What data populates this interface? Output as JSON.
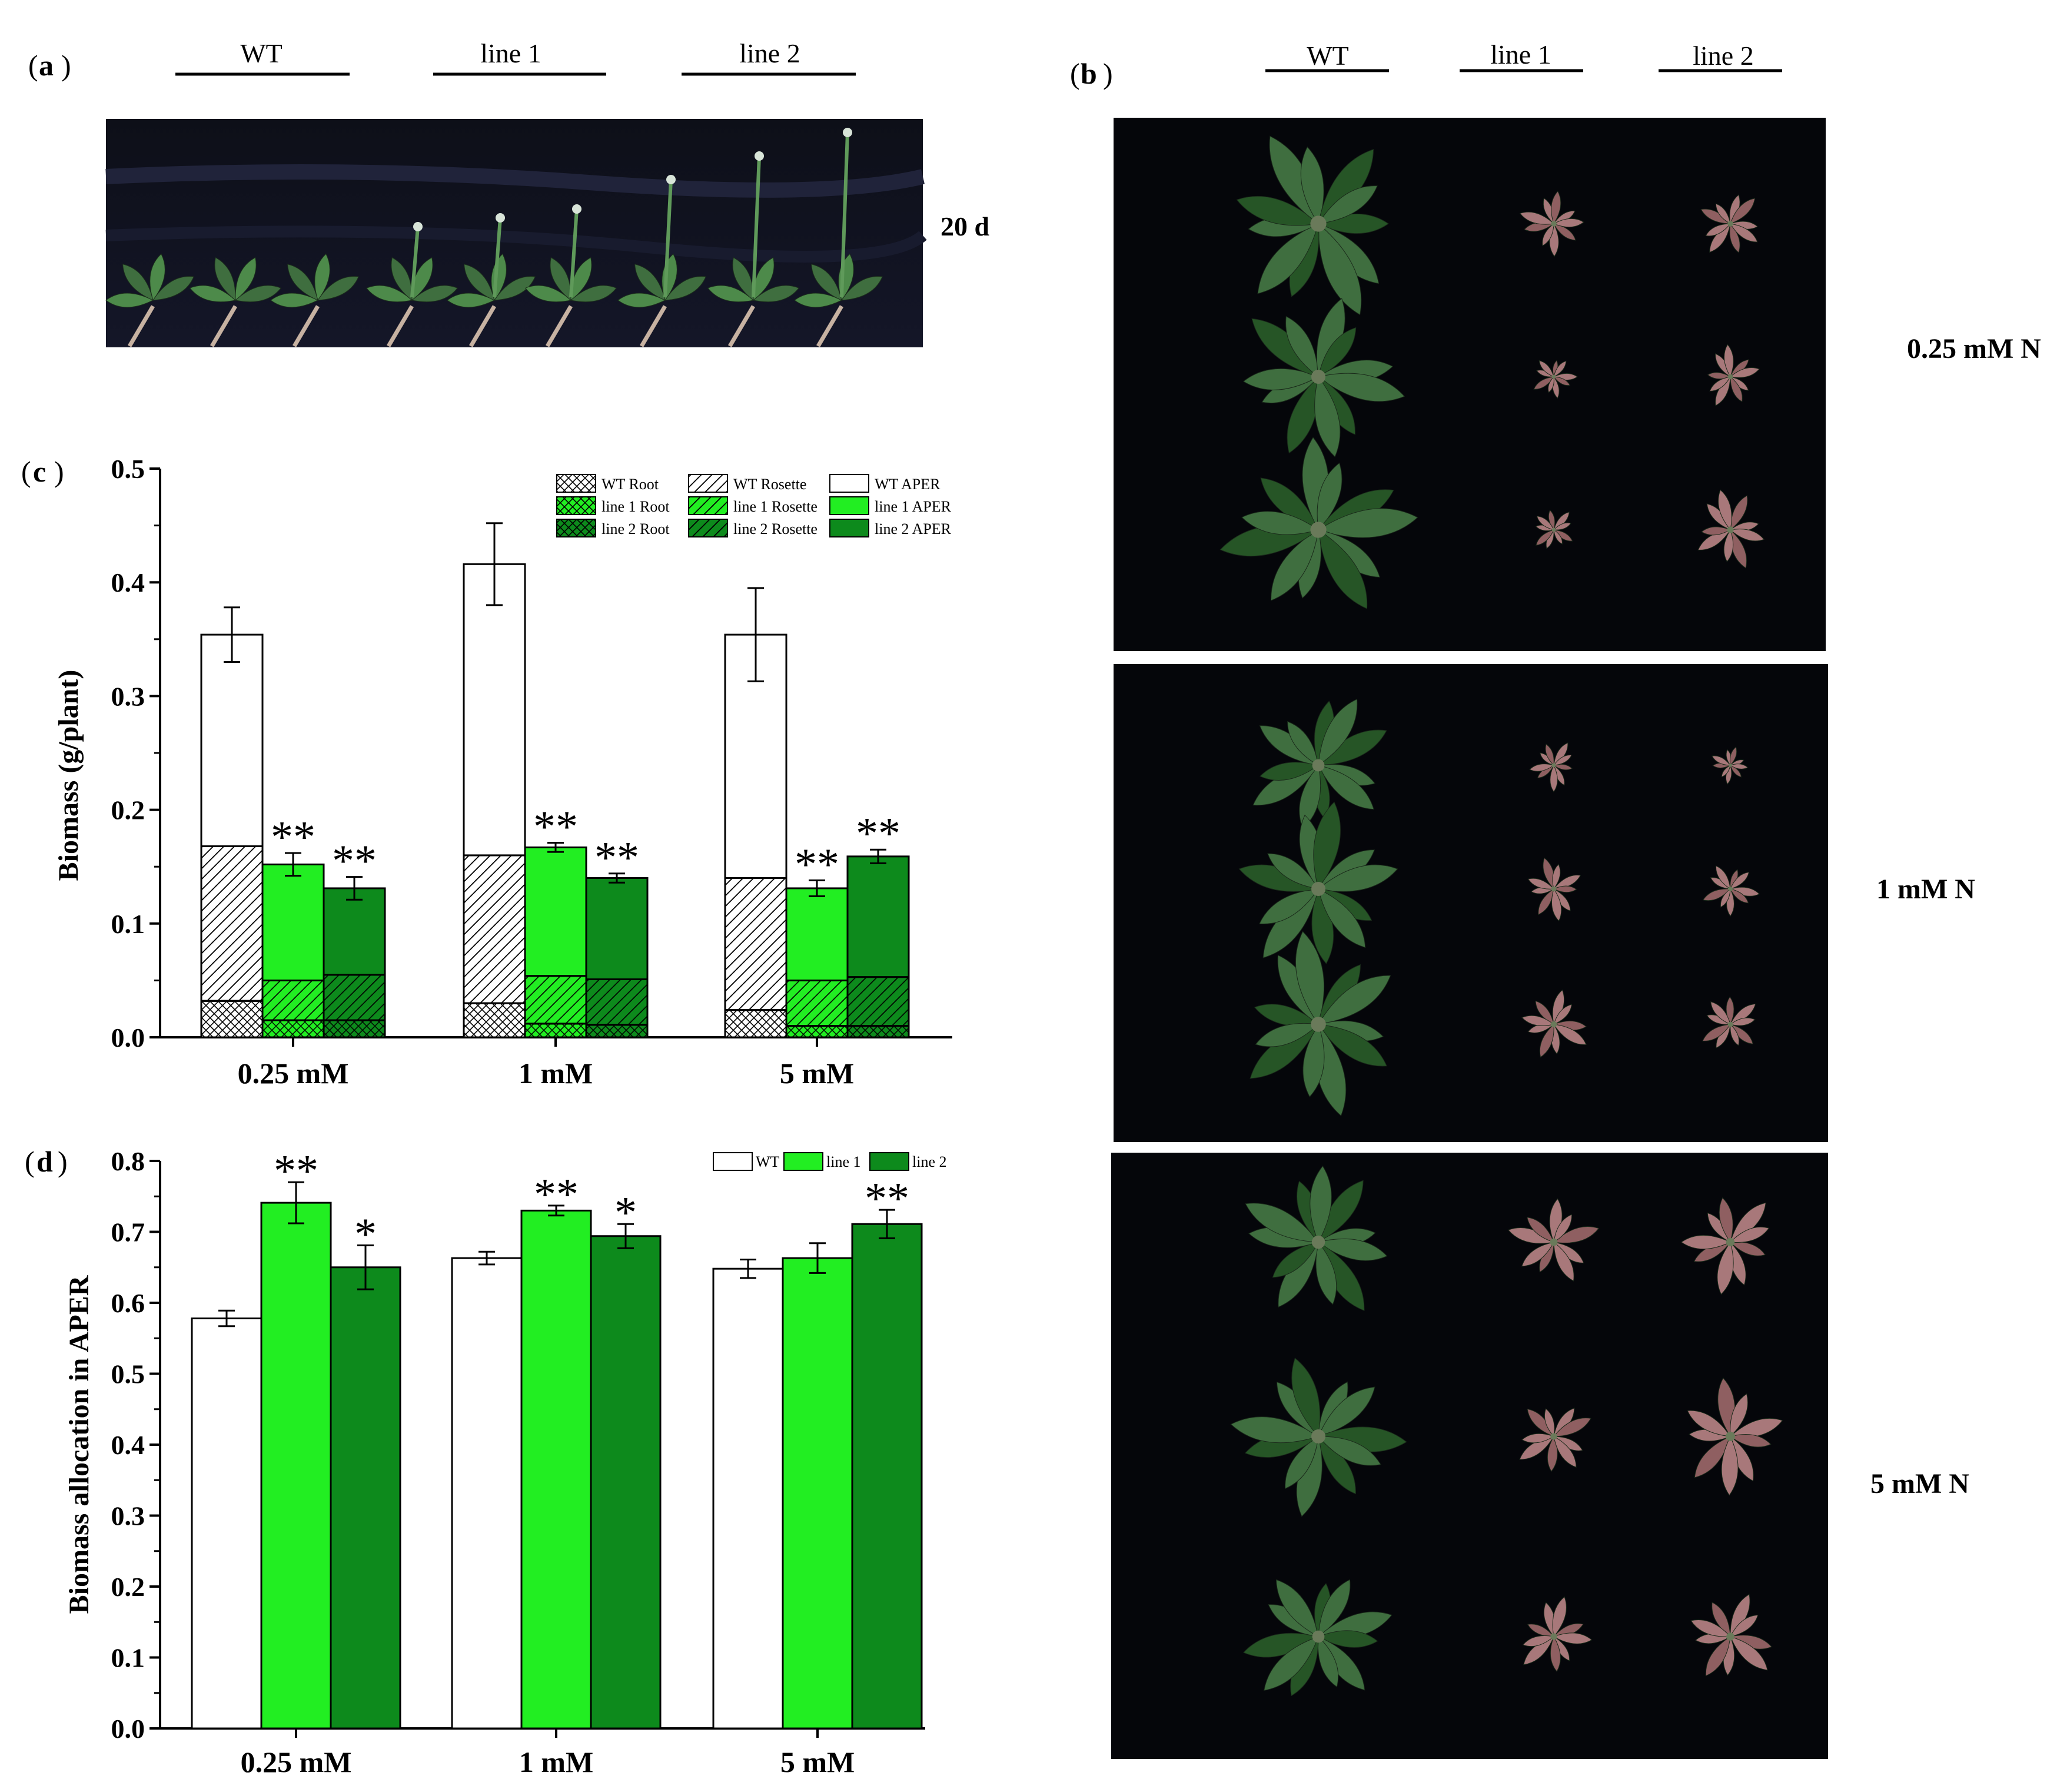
{
  "colors": {
    "wt": "#ffffff",
    "line1": "#22ee22",
    "line2": "#0d8a1c",
    "photo_bg": "#05060a",
    "leaf": "#3f6e3f",
    "leaf_dark": "#2c5230",
    "leaf_stress": "#a8787a"
  },
  "panel_a": {
    "letter": "a",
    "headers": [
      "WT",
      "line 1",
      "line 2"
    ],
    "time_label": "20 d"
  },
  "panel_b": {
    "letter": "b",
    "headers": [
      "WT",
      "line 1",
      "line 2"
    ],
    "row_labels": [
      "0.25 mM N",
      "1 mM N",
      "5 mM N"
    ]
  },
  "chart_data": [
    {
      "panel": "c",
      "type": "bar",
      "stacked": true,
      "ylabel": "Biomass (g/plant)",
      "ylim": [
        0,
        0.5
      ],
      "yticks": [
        "0.0",
        "0.1",
        "0.2",
        "0.3",
        "0.4",
        "0.5"
      ],
      "categories": [
        "0.25 mM",
        "1 mM",
        "5 mM"
      ],
      "legend_position": "top-right",
      "legend": [
        "WT Root",
        "WT Rosette",
        "WT APER",
        "line 1 Root",
        "line 1 Rosette",
        "line 1 APER",
        "line 2 Root",
        "line 2 Rosette",
        "line 2 APER"
      ],
      "series": [
        {
          "name": "WT",
          "root": [
            0.032,
            0.03,
            0.024
          ],
          "rosette": [
            0.136,
            0.13,
            0.116
          ],
          "aper": [
            0.186,
            0.256,
            0.214
          ],
          "error": [
            0.024,
            0.036,
            0.041
          ],
          "stars": [
            "",
            "",
            ""
          ]
        },
        {
          "name": "line 1",
          "root": [
            0.015,
            0.012,
            0.01
          ],
          "rosette": [
            0.035,
            0.042,
            0.04
          ],
          "aper": [
            0.102,
            0.113,
            0.081
          ],
          "error": [
            0.01,
            0.004,
            0.007
          ],
          "stars": [
            "**",
            "**",
            "**"
          ]
        },
        {
          "name": "line 2",
          "root": [
            0.015,
            0.011,
            0.01
          ],
          "rosette": [
            0.04,
            0.04,
            0.043
          ],
          "aper": [
            0.076,
            0.089,
            0.106
          ],
          "error": [
            0.01,
            0.004,
            0.006
          ],
          "stars": [
            "**",
            "**",
            "**"
          ]
        }
      ]
    },
    {
      "panel": "d",
      "type": "bar",
      "ylabel": "Biomass allocation in APER",
      "ylim": [
        0,
        0.8
      ],
      "yticks": [
        "0.0",
        "0.1",
        "0.2",
        "0.3",
        "0.4",
        "0.5",
        "0.6",
        "0.7",
        "0.8"
      ],
      "categories": [
        "0.25 mM",
        "1 mM",
        "5 mM"
      ],
      "legend_position": "top-right",
      "legend": [
        "WT",
        "line 1",
        "line 2"
      ],
      "series": [
        {
          "name": "WT",
          "values": [
            0.578,
            0.663,
            0.648
          ],
          "error": [
            0.011,
            0.009,
            0.013
          ],
          "stars": [
            "",
            "",
            ""
          ]
        },
        {
          "name": "line 1",
          "values": [
            0.741,
            0.73,
            0.663
          ],
          "error": [
            0.029,
            0.007,
            0.021
          ],
          "stars": [
            "**",
            "**",
            ""
          ]
        },
        {
          "name": "line 2",
          "values": [
            0.65,
            0.694,
            0.711
          ],
          "error": [
            0.031,
            0.017,
            0.02
          ],
          "stars": [
            "*",
            "*",
            "**"
          ]
        }
      ]
    }
  ]
}
